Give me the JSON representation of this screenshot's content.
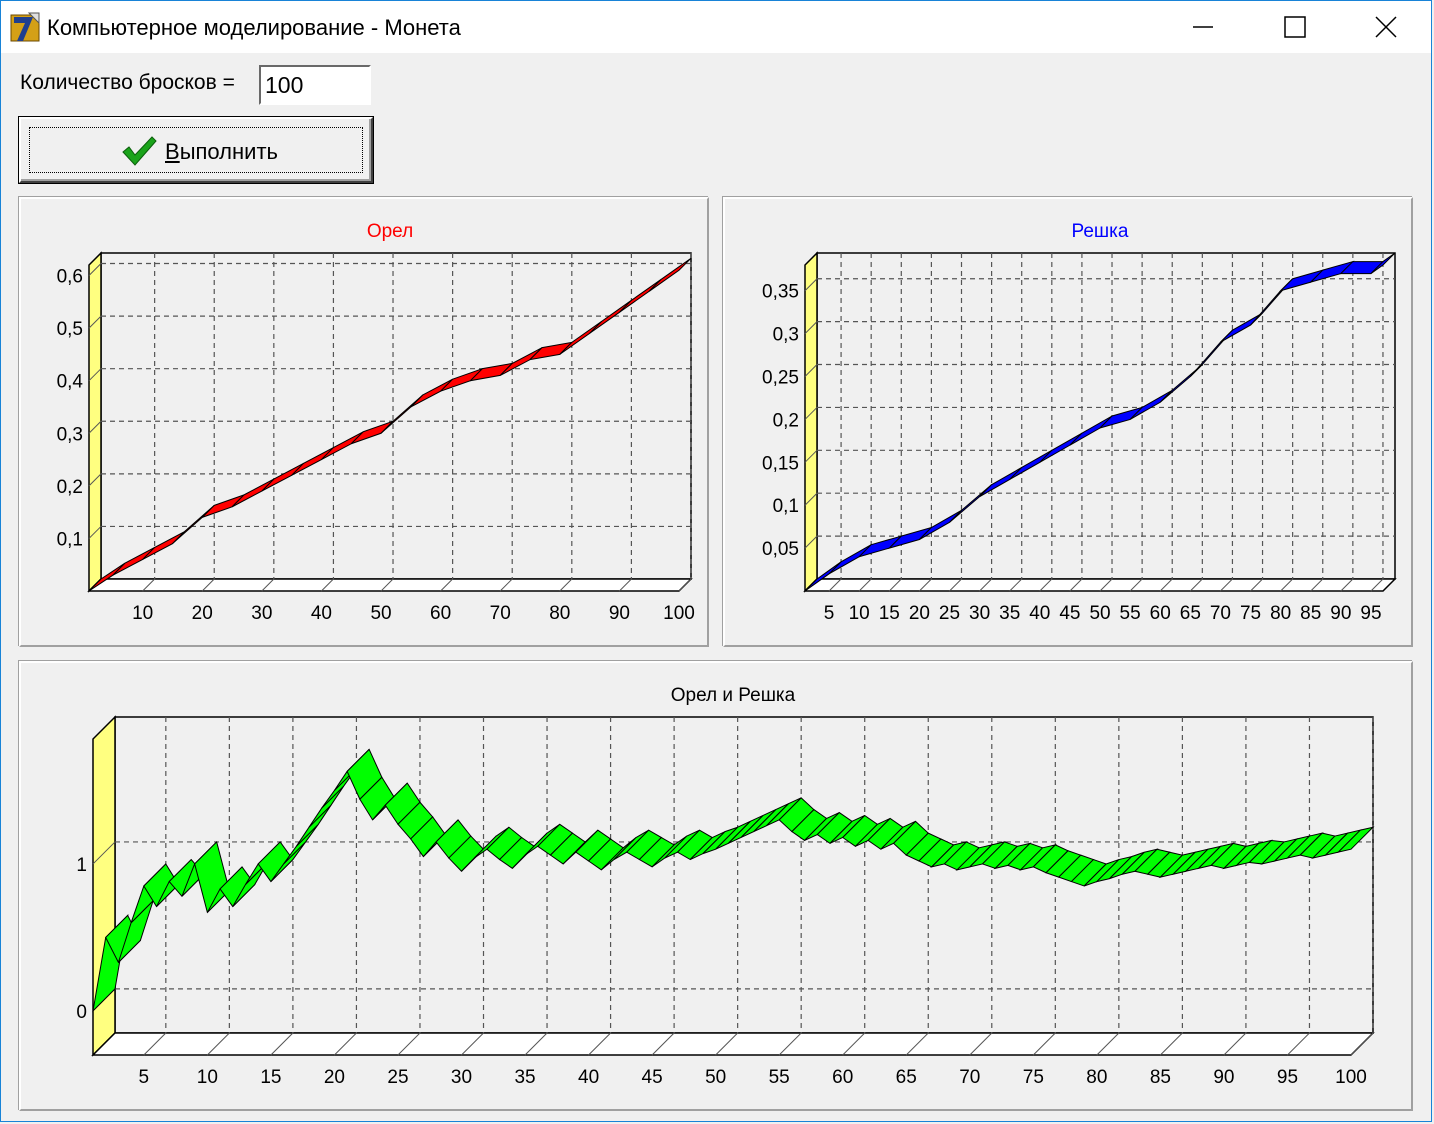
{
  "window": {
    "title": "Компьютерное моделирование - Монета",
    "minimize_icon": "minimize-icon",
    "maximize_icon": "maximize-icon",
    "close_icon": "close-icon",
    "app_icon": "delphi-app-icon"
  },
  "form": {
    "throws_label": "Количество бросков =",
    "throws_value": "100",
    "run_button_label_accel": "В",
    "run_button_label_rest": "ыполнить",
    "run_icon": "checkmark-icon"
  },
  "colors": {
    "orel": "#ff0000",
    "reshka": "#0000ff",
    "both": "#00ff00",
    "back_wall": "#ffff80"
  },
  "chart_data": [
    {
      "type": "area",
      "title": "Орел",
      "title_color": "#ff0000",
      "xlim": [
        1,
        100
      ],
      "ylim": [
        0,
        0.62
      ],
      "x_ticks": [
        10,
        20,
        30,
        40,
        50,
        60,
        70,
        80,
        90,
        100
      ],
      "y_ticks": [
        "0,1",
        "0,2",
        "0,3",
        "0,4",
        "0,5",
        "0,6"
      ],
      "y_tick_values": [
        0.1,
        0.2,
        0.3,
        0.4,
        0.5,
        0.6
      ],
      "grid": true,
      "series": [
        {
          "color": "#ff0000",
          "x": [
            1,
            5,
            10,
            15,
            20,
            25,
            30,
            35,
            40,
            45,
            50,
            55,
            60,
            65,
            70,
            75,
            80,
            85,
            90,
            95,
            100
          ],
          "values": [
            0.0,
            0.03,
            0.06,
            0.09,
            0.14,
            0.16,
            0.19,
            0.22,
            0.25,
            0.28,
            0.3,
            0.35,
            0.38,
            0.4,
            0.41,
            0.44,
            0.45,
            0.49,
            0.53,
            0.57,
            0.61
          ]
        }
      ]
    },
    {
      "type": "area",
      "title": "Решка",
      "title_color": "#0000ff",
      "xlim": [
        1,
        97
      ],
      "ylim": [
        0,
        0.38
      ],
      "x_ticks": [
        5,
        10,
        15,
        20,
        25,
        30,
        35,
        40,
        45,
        50,
        55,
        60,
        65,
        70,
        75,
        80,
        85,
        90,
        95
      ],
      "y_ticks": [
        "0,05",
        "0,1",
        "0,15",
        "0,2",
        "0,25",
        "0,3",
        "0,35"
      ],
      "y_tick_values": [
        0.05,
        0.1,
        0.15,
        0.2,
        0.25,
        0.3,
        0.35
      ],
      "grid": true,
      "series": [
        {
          "color": "#0000ff",
          "x": [
            1,
            5,
            10,
            15,
            20,
            25,
            30,
            35,
            40,
            45,
            50,
            55,
            60,
            65,
            70,
            75,
            80,
            85,
            90,
            95,
            97
          ],
          "values": [
            0.0,
            0.02,
            0.04,
            0.05,
            0.06,
            0.08,
            0.11,
            0.13,
            0.15,
            0.17,
            0.19,
            0.2,
            0.22,
            0.25,
            0.29,
            0.31,
            0.35,
            0.36,
            0.37,
            0.37,
            0.38
          ]
        }
      ]
    },
    {
      "type": "area",
      "title": "Орел и Решка",
      "title_color": "#000000",
      "xlim": [
        1,
        100
      ],
      "ylim": [
        -0.3,
        1.85
      ],
      "x_ticks": [
        5,
        10,
        15,
        20,
        25,
        30,
        35,
        40,
        45,
        50,
        55,
        60,
        65,
        70,
        75,
        80,
        85,
        90,
        95,
        100
      ],
      "y_ticks": [
        "0",
        "1"
      ],
      "y_tick_values": [
        0,
        1
      ],
      "grid": true,
      "series": [
        {
          "color": "#00ff00",
          "x": [
            1,
            2,
            3,
            4,
            5,
            6,
            7,
            8,
            9,
            10,
            11,
            12,
            13,
            14,
            15,
            16,
            17,
            18,
            19,
            20,
            21,
            22,
            23,
            24,
            25,
            26,
            27,
            28,
            29,
            30,
            31,
            32,
            33,
            34,
            35,
            36,
            37,
            38,
            39,
            40,
            41,
            42,
            43,
            44,
            45,
            46,
            47,
            48,
            49,
            50,
            51,
            52,
            53,
            54,
            55,
            56,
            57,
            58,
            59,
            60,
            61,
            62,
            63,
            64,
            65,
            66,
            67,
            68,
            69,
            70,
            71,
            72,
            73,
            74,
            75,
            76,
            77,
            78,
            79,
            80,
            81,
            82,
            83,
            84,
            85,
            86,
            87,
            88,
            89,
            90,
            91,
            92,
            93,
            94,
            95,
            96,
            97,
            98,
            99,
            100
          ],
          "values": [
            0.0,
            0.5,
            0.33,
            0.6,
            0.85,
            0.71,
            0.88,
            0.78,
            1.0,
            0.67,
            0.83,
            0.71,
            0.86,
            1.0,
            0.88,
            1.0,
            1.12,
            1.25,
            1.38,
            1.5,
            1.63,
            1.44,
            1.3,
            1.4,
            1.27,
            1.17,
            1.05,
            1.15,
            1.04,
            0.95,
            1.04,
            1.1,
            1.03,
            0.97,
            1.06,
            1.12,
            1.06,
            1.0,
            1.08,
            1.02,
            0.96,
            1.03,
            1.08,
            1.03,
            0.98,
            1.04,
            1.08,
            1.03,
            1.07,
            1.1,
            1.14,
            1.18,
            1.22,
            1.26,
            1.3,
            1.22,
            1.16,
            1.2,
            1.14,
            1.18,
            1.12,
            1.16,
            1.1,
            1.14,
            1.06,
            1.02,
            0.98,
            1.0,
            0.96,
            0.98,
            1.0,
            0.97,
            0.99,
            0.96,
            0.98,
            0.94,
            0.91,
            0.88,
            0.85,
            0.88,
            0.9,
            0.93,
            0.95,
            0.93,
            0.91,
            0.93,
            0.95,
            0.97,
            0.99,
            0.97,
            0.99,
            1.01,
            1.0,
            1.02,
            1.04,
            1.06,
            1.04,
            1.06,
            1.08,
            1.1
          ]
        }
      ]
    }
  ]
}
